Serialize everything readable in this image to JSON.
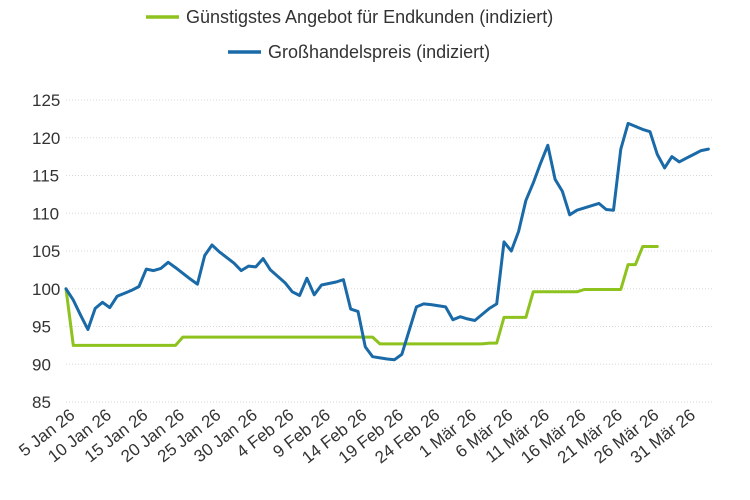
{
  "chart_data": {
    "type": "line",
    "ylim": [
      85,
      125
    ],
    "yticks": [
      85,
      90,
      95,
      100,
      105,
      110,
      115,
      120,
      125
    ],
    "grid": true,
    "legend_position": "top-center",
    "x_start": "2026-01-05",
    "xtick_labels": [
      "5 Jan 26",
      "10 Jan 26",
      "15 Jan 26",
      "20 Jan 26",
      "25 Jan 26",
      "30 Jan 26",
      "4 Feb 26",
      "9 Feb 26",
      "14 Feb 26",
      "19 Feb 26",
      "24 Feb 26",
      "1 Mär 26",
      "6 Mär 26",
      "11 Mär 26",
      "16 Mär 26",
      "21 Mär 26",
      "26 Mär 26",
      "31 Mär 26"
    ],
    "series": [
      {
        "name": "Günstigstes Angebot für Endkunden (indiziert)",
        "color": "#8dc21f",
        "points": [
          [
            "2026-01-05",
            100.0
          ],
          [
            "2026-01-06",
            92.5
          ],
          [
            "2026-01-20",
            92.5
          ],
          [
            "2026-01-21",
            93.6
          ],
          [
            "2026-02-16",
            93.6
          ],
          [
            "2026-02-17",
            92.7
          ],
          [
            "2026-03-03",
            92.7
          ],
          [
            "2026-03-04",
            92.8
          ],
          [
            "2026-03-05",
            92.8
          ],
          [
            "2026-03-06",
            96.2
          ],
          [
            "2026-03-09",
            96.2
          ],
          [
            "2026-03-10",
            99.6
          ],
          [
            "2026-03-16",
            99.6
          ],
          [
            "2026-03-17",
            99.9
          ],
          [
            "2026-03-22",
            99.9
          ],
          [
            "2026-03-23",
            103.2
          ],
          [
            "2026-03-24",
            103.2
          ],
          [
            "2026-03-25",
            105.6
          ],
          [
            "2026-03-27",
            105.6
          ]
        ]
      },
      {
        "name": "Großhandelspreis (indiziert)",
        "color": "#1a6aa8",
        "points": [
          [
            "2026-01-05",
            100.0
          ],
          [
            "2026-01-06",
            98.5
          ],
          [
            "2026-01-07",
            96.5
          ],
          [
            "2026-01-08",
            94.6
          ],
          [
            "2026-01-09",
            97.4
          ],
          [
            "2026-01-10",
            98.2
          ],
          [
            "2026-01-11",
            97.5
          ],
          [
            "2026-01-12",
            99.0
          ],
          [
            "2026-01-14",
            99.8
          ],
          [
            "2026-01-15",
            100.3
          ],
          [
            "2026-01-16",
            102.6
          ],
          [
            "2026-01-17",
            102.4
          ],
          [
            "2026-01-18",
            102.7
          ],
          [
            "2026-01-19",
            103.5
          ],
          [
            "2026-01-20",
            102.8
          ],
          [
            "2026-01-22",
            101.3
          ],
          [
            "2026-01-23",
            100.6
          ],
          [
            "2026-01-24",
            104.4
          ],
          [
            "2026-01-25",
            105.8
          ],
          [
            "2026-01-26",
            104.9
          ],
          [
            "2026-01-28",
            103.4
          ],
          [
            "2026-01-29",
            102.4
          ],
          [
            "2026-01-30",
            103.0
          ],
          [
            "2026-01-31",
            102.9
          ],
          [
            "2026-02-01",
            104.0
          ],
          [
            "2026-02-02",
            102.5
          ],
          [
            "2026-02-04",
            100.8
          ],
          [
            "2026-02-05",
            99.6
          ],
          [
            "2026-02-06",
            99.1
          ],
          [
            "2026-02-07",
            101.4
          ],
          [
            "2026-02-08",
            99.2
          ],
          [
            "2026-02-09",
            100.5
          ],
          [
            "2026-02-11",
            100.9
          ],
          [
            "2026-02-12",
            101.2
          ],
          [
            "2026-02-13",
            97.3
          ],
          [
            "2026-02-14",
            97.0
          ],
          [
            "2026-02-15",
            92.3
          ],
          [
            "2026-02-16",
            91.0
          ],
          [
            "2026-02-18",
            90.7
          ],
          [
            "2026-02-19",
            90.6
          ],
          [
            "2026-02-20",
            91.3
          ],
          [
            "2026-02-22",
            97.6
          ],
          [
            "2026-02-23",
            98.0
          ],
          [
            "2026-02-24",
            97.9
          ],
          [
            "2026-02-26",
            97.6
          ],
          [
            "2026-02-27",
            95.9
          ],
          [
            "2026-02-28",
            96.3
          ],
          [
            "2026-03-01",
            96.0
          ],
          [
            "2026-03-02",
            95.8
          ],
          [
            "2026-03-04",
            97.4
          ],
          [
            "2026-03-05",
            98.0
          ],
          [
            "2026-03-06",
            106.2
          ],
          [
            "2026-03-07",
            105.0
          ],
          [
            "2026-03-08",
            107.6
          ],
          [
            "2026-03-09",
            111.7
          ],
          [
            "2026-03-10",
            114.0
          ],
          [
            "2026-03-11",
            116.6
          ],
          [
            "2026-03-12",
            119.0
          ],
          [
            "2026-03-13",
            114.5
          ],
          [
            "2026-03-14",
            112.9
          ],
          [
            "2026-03-15",
            109.8
          ],
          [
            "2026-03-16",
            110.4
          ],
          [
            "2026-03-18",
            111.0
          ],
          [
            "2026-03-19",
            111.3
          ],
          [
            "2026-03-20",
            110.5
          ],
          [
            "2026-03-21",
            110.4
          ],
          [
            "2026-03-22",
            118.5
          ],
          [
            "2026-03-23",
            121.9
          ],
          [
            "2026-03-24",
            121.5
          ],
          [
            "2026-03-25",
            121.1
          ],
          [
            "2026-03-26",
            120.8
          ],
          [
            "2026-03-27",
            117.8
          ],
          [
            "2026-03-28",
            116.0
          ],
          [
            "2026-03-29",
            117.5
          ],
          [
            "2026-03-30",
            116.8
          ],
          [
            "2026-03-31",
            117.3
          ],
          [
            "2026-04-01",
            117.8
          ],
          [
            "2026-04-02",
            118.3
          ],
          [
            "2026-04-03",
            118.5
          ]
        ]
      }
    ]
  }
}
